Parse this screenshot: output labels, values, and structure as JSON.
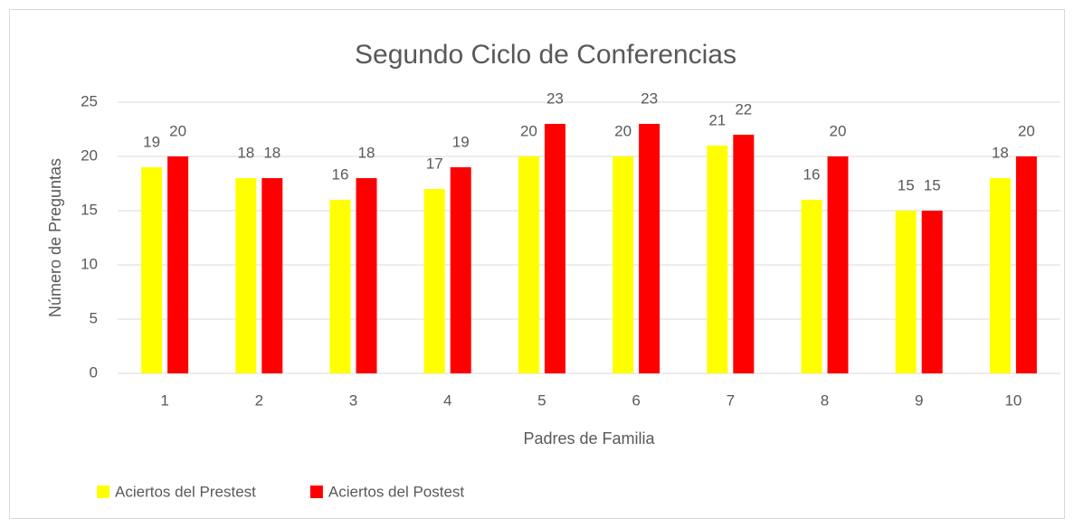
{
  "chart_data": {
    "type": "bar",
    "title": "Segundo Ciclo de Conferencias",
    "x_label": "Padres de Familia",
    "y_label": "Número de Preguntas",
    "categories": [
      "1",
      "2",
      "3",
      "4",
      "5",
      "6",
      "7",
      "8",
      "9",
      "10"
    ],
    "series": [
      {
        "name": "Aciertos del Prestest",
        "color": "#ffff00",
        "values": [
          19,
          18,
          16,
          17,
          20,
          20,
          21,
          16,
          15,
          18
        ]
      },
      {
        "name": "Aciertos del Postest",
        "color": "#ff0000",
        "values": [
          20,
          18,
          18,
          19,
          23,
          23,
          22,
          20,
          15,
          20
        ]
      }
    ],
    "ylim": [
      0,
      25
    ],
    "yticks": [
      0,
      5,
      10,
      15,
      20,
      25
    ],
    "grid": true,
    "legend": "bottom-left"
  }
}
